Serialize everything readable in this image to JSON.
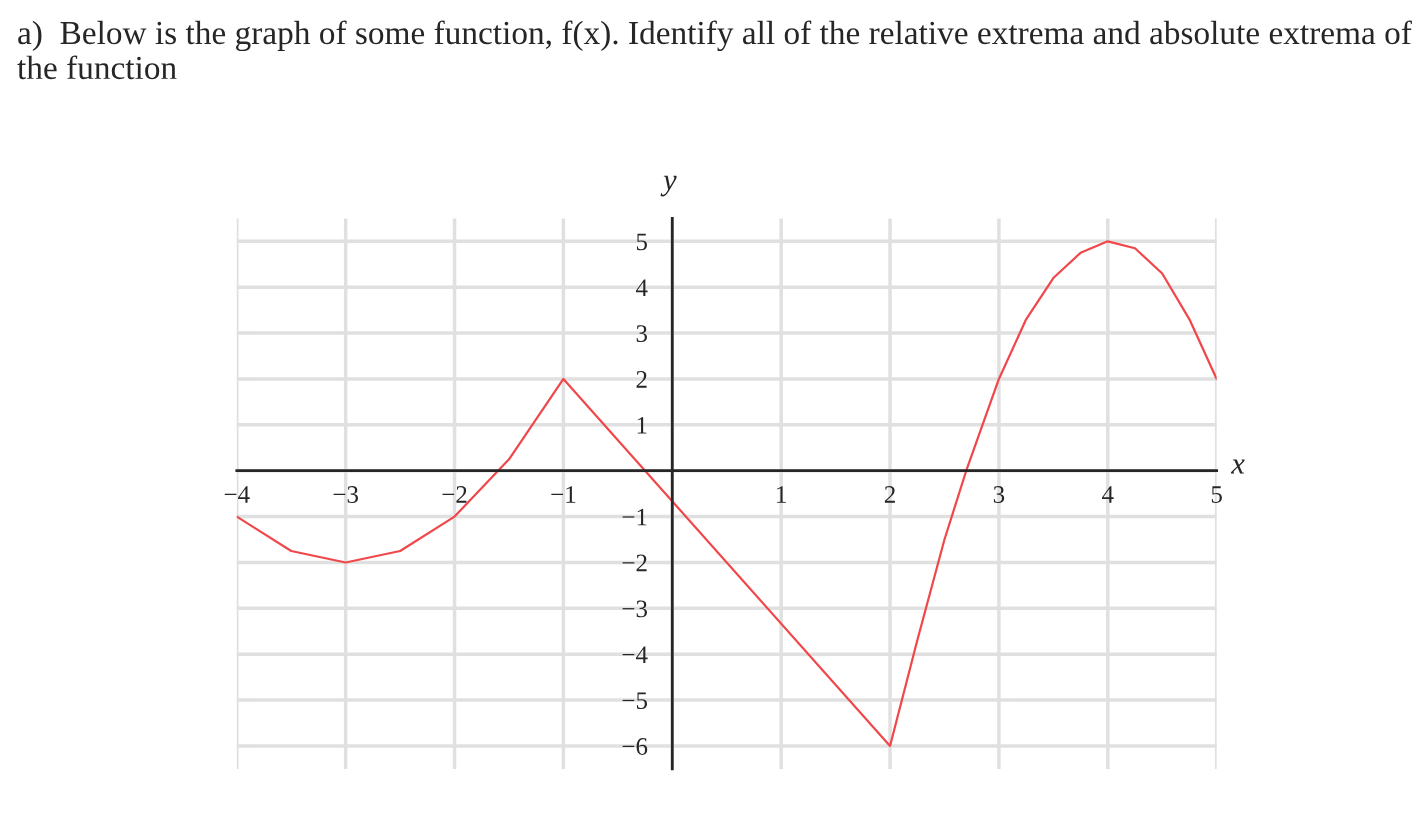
{
  "chart_data": {
    "type": "line",
    "title": "a)  Below is the graph of some function, f(x). Identify all of the relative extrema and absolute extrema of the function",
    "xlabel": "x",
    "ylabel": "y",
    "series": [
      {
        "color": "#f0484a",
        "x": [
          -4,
          -3.5,
          -3,
          -2.5,
          -2,
          -1.5,
          -1,
          2,
          2.25,
          2.5,
          2.7,
          3,
          3.25,
          3.5,
          3.75,
          4,
          4.25,
          4.5,
          4.75,
          5
        ],
        "values": [
          -1,
          -1.75,
          -2,
          -1.75,
          -1,
          0.25,
          2,
          -6,
          -3.7,
          -1.5,
          0,
          2,
          3.3,
          4.2,
          4.75,
          5,
          4.85,
          4.3,
          3.3,
          2
        ]
      }
    ],
    "xlim": [
      -4,
      5
    ],
    "ylim": [
      -6.5,
      5.5
    ],
    "xticks": [
      -4,
      -3,
      -2,
      -1,
      1,
      2,
      3,
      4,
      5
    ],
    "yticks": [
      -6,
      -5,
      -4,
      -3,
      -2,
      -1,
      1,
      2,
      3,
      4,
      5
    ],
    "grid": true
  }
}
